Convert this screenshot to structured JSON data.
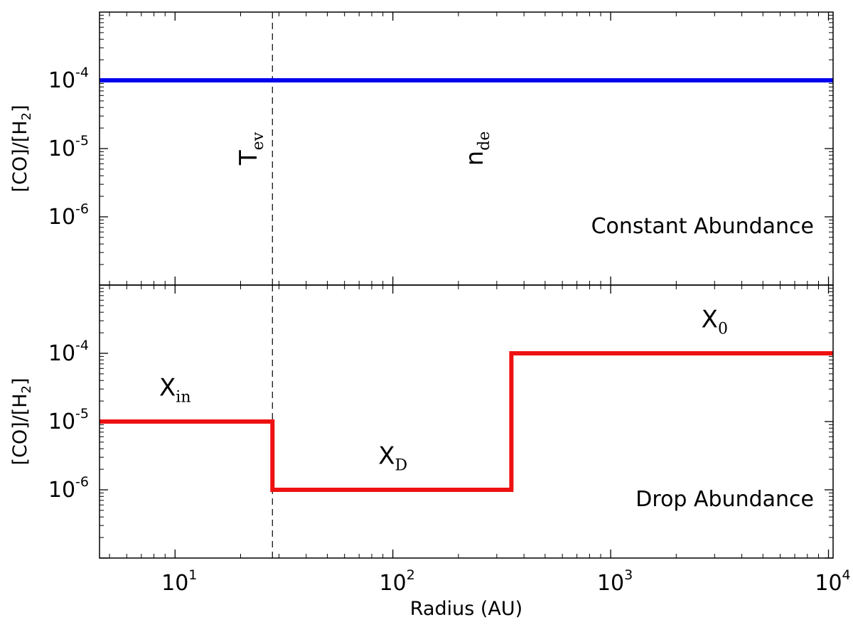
{
  "chart_data": [
    {
      "type": "line",
      "panel": "top",
      "title": "",
      "annotation": "Constant Abundance",
      "xlabel": "Radius (AU)",
      "ylabel": "[CO]/[H",
      "ylabel_sub": "2",
      "ylabel_end": "]",
      "xscale": "log",
      "yscale": "log",
      "xlim": [
        4.5,
        10500
      ],
      "ylim": [
        1e-07,
        0.001
      ],
      "yticks": [
        {
          "base": "10",
          "exp": "-4",
          "value": 0.0001
        },
        {
          "base": "10",
          "exp": "-5",
          "value": 1e-05
        },
        {
          "base": "10",
          "exp": "-6",
          "value": 1e-06
        }
      ],
      "series": [
        {
          "color": "#0000ee",
          "x": [
            4.5,
            10500
          ],
          "y": [
            0.0001,
            0.0001
          ]
        }
      ],
      "vline": {
        "x": 28
      },
      "labels": [
        {
          "main": "T",
          "sub": "ev",
          "x": 22,
          "y": 1e-05,
          "rotate": true
        },
        {
          "main": "n",
          "sub": "de",
          "x": 240,
          "y": 1e-05,
          "rotate": true
        }
      ]
    },
    {
      "type": "line",
      "panel": "bottom",
      "title": "",
      "annotation": "Drop Abundance",
      "xlabel": "Radius (AU)",
      "ylabel": "[CO]/[H",
      "ylabel_sub": "2",
      "ylabel_end": "]",
      "xscale": "log",
      "yscale": "log",
      "xlim": [
        4.5,
        10500
      ],
      "ylim": [
        1e-07,
        0.001
      ],
      "yticks": [
        {
          "base": "10",
          "exp": "-4",
          "value": 0.0001
        },
        {
          "base": "10",
          "exp": "-5",
          "value": 1e-05
        },
        {
          "base": "10",
          "exp": "-6",
          "value": 1e-06
        }
      ],
      "xticks": [
        {
          "base": "10",
          "exp": "1",
          "value": 10
        },
        {
          "base": "10",
          "exp": "2",
          "value": 100
        },
        {
          "base": "10",
          "exp": "3",
          "value": 1000
        },
        {
          "base": "10",
          "exp": "4",
          "value": 10000
        }
      ],
      "series": [
        {
          "color": "#ee1111",
          "x": [
            4.5,
            28,
            28,
            350,
            350,
            10500
          ],
          "y": [
            1e-05,
            1e-05,
            1e-06,
            1e-06,
            0.0001,
            0.0001
          ]
        }
      ],
      "vline": {
        "x": 28
      },
      "labels": [
        {
          "main": "X",
          "sub": "in",
          "x": 10,
          "y": 2.4e-05,
          "rotate": false
        },
        {
          "main": "X",
          "sub": "D",
          "x": 100,
          "y": 2.4e-06,
          "rotate": false
        },
        {
          "main": "X",
          "sub": "0",
          "x": 3000,
          "y": 0.00024,
          "rotate": false
        }
      ]
    }
  ]
}
